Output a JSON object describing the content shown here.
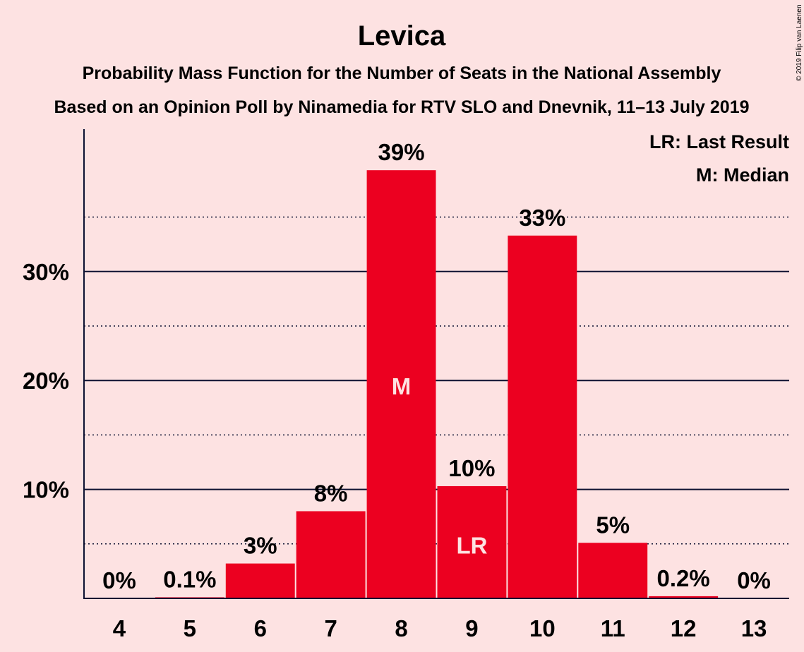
{
  "chart_data": {
    "type": "bar",
    "title": "Levica",
    "subtitle": "Probability Mass Function for the Number of Seats in the National Assembly",
    "subtitle2": "Based on an Opinion Poll by Ninamedia for RTV SLO and Dnevnik, 11–13 July 2019",
    "categories": [
      "4",
      "5",
      "6",
      "7",
      "8",
      "9",
      "10",
      "11",
      "12",
      "13"
    ],
    "values": [
      0,
      0.1,
      3.2,
      8.0,
      39.3,
      10.3,
      33.3,
      5.1,
      0.2,
      0
    ],
    "data_labels": [
      "0%",
      "0.1%",
      "3%",
      "8%",
      "39%",
      "10%",
      "33%",
      "5%",
      "0.2%",
      "0%"
    ],
    "ylim": [
      0,
      43
    ],
    "y_ticks": [
      10,
      20,
      30
    ],
    "y_tick_labels": [
      "10%",
      "20%",
      "30%"
    ],
    "y_minor_gridlines": [
      5,
      15,
      25,
      35
    ],
    "in_bar_labels": [
      {
        "category": "8",
        "text": "M",
        "y": 19.5
      },
      {
        "category": "9",
        "text": "LR",
        "y": 4.9
      }
    ],
    "legend": [
      "LR: Last Result",
      "M: Median"
    ],
    "legend_position": "top-right",
    "bar_color": "#ec0020",
    "text_color": "#0d1030",
    "background": "#fde2e2"
  },
  "copyright": "© 2019 Filip van Laenen"
}
